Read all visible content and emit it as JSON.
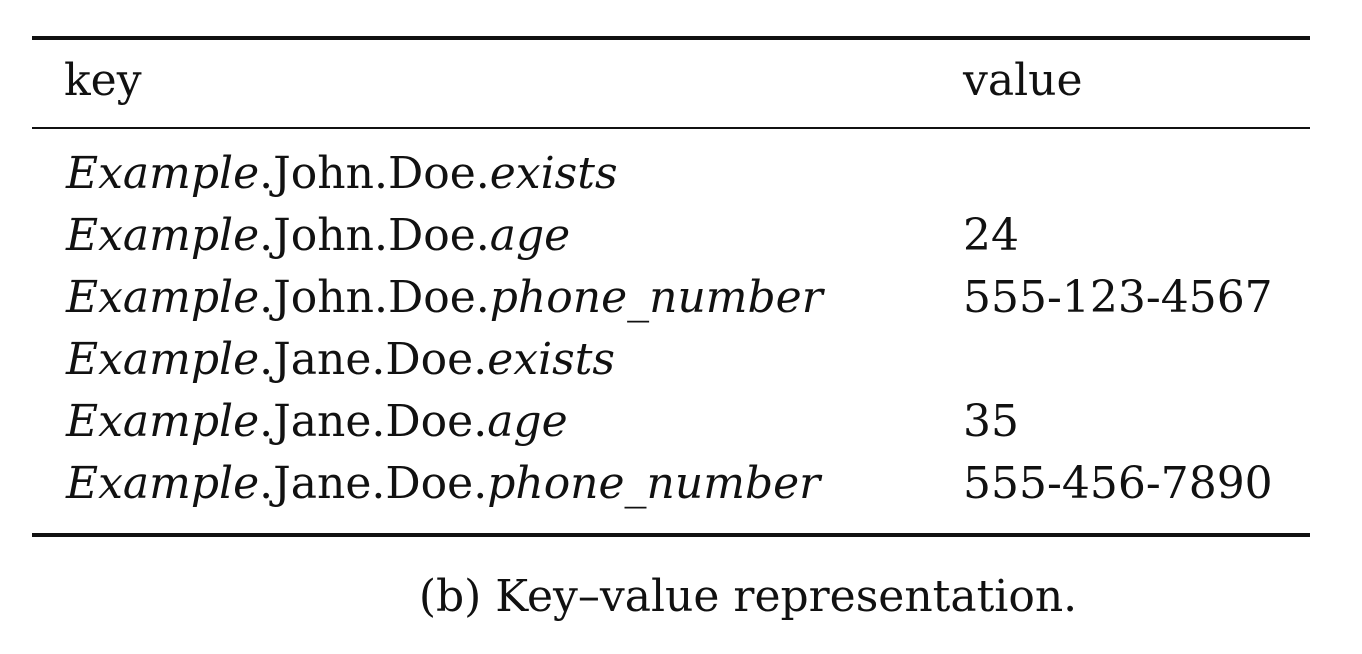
{
  "table": {
    "headers": {
      "key": "key",
      "value": "value"
    },
    "rows": [
      {
        "key_prefix": "Example",
        "key_mid": ".John.Doe.",
        "key_suffix": "exists",
        "value": ""
      },
      {
        "key_prefix": "Example",
        "key_mid": ".John.Doe.",
        "key_suffix": "age",
        "value": "24"
      },
      {
        "key_prefix": "Example",
        "key_mid": ".John.Doe.",
        "key_suffix": "phone_number",
        "value": "555-123-4567"
      },
      {
        "key_prefix": "Example",
        "key_mid": ".Jane.Doe.",
        "key_suffix": "exists",
        "value": ""
      },
      {
        "key_prefix": "Example",
        "key_mid": ".Jane.Doe.",
        "key_suffix": "age",
        "value": "35"
      },
      {
        "key_prefix": "Example",
        "key_mid": ".Jane.Doe.",
        "key_suffix": "phone_number",
        "value": "555-456-7890"
      }
    ]
  },
  "caption": "(b) Key–value representation."
}
